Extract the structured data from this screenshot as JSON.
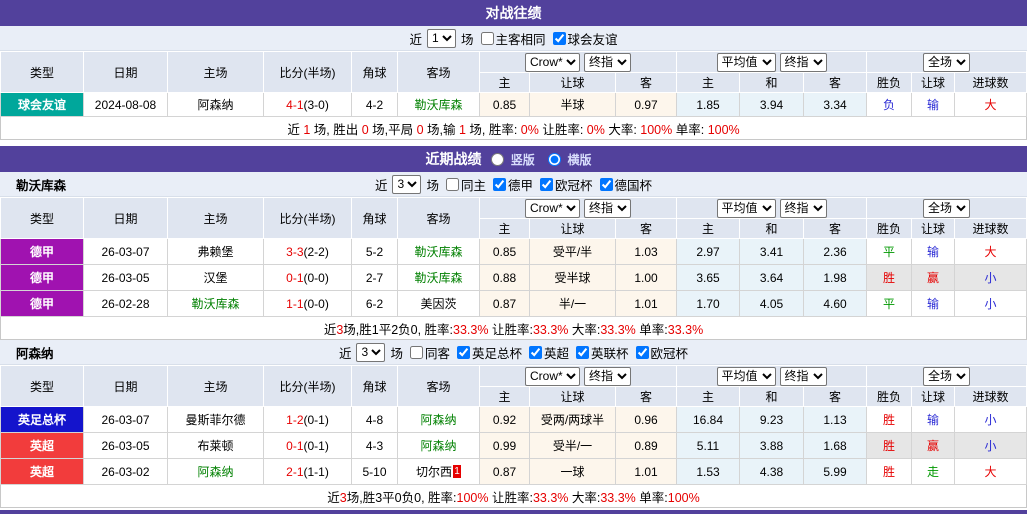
{
  "palette": {
    "header_purple": "#52419c",
    "filter_bg": "#e9eef7",
    "table_header_bg": "#dfe5f0",
    "league_friendly_teal": "#00a79b",
    "league_bundesliga_purple": "#a012b0",
    "league_facup_blue": "#1414cc",
    "league_epl_red": "#f23c3c",
    "team_link_green": "#008000",
    "score_red": "#e60000",
    "result_blue": "#2b2bd5",
    "result_green": "#009900",
    "odds_col_cream": "#fdf6ec",
    "avg_col_blue": "#e9f3f9",
    "highlight_gray": "#e6e6e6"
  },
  "cols": {
    "type": "类型",
    "date": "日期",
    "home": "主场",
    "score": "比分(半场)",
    "corner": "角球",
    "away": "客场",
    "h": "主",
    "handicap": "让球",
    "a": "客",
    "avg_h": "主",
    "avg_d": "和",
    "avg_a": "客",
    "wdl": "胜负",
    "handicap_res": "让球",
    "goals": "进球数"
  },
  "dropdowns": {
    "bookmaker": "Crow*",
    "final_index": "终指",
    "average": "平均值",
    "final_index2": "终指",
    "full_match": "全场"
  },
  "h2h": {
    "title": "对战往绩",
    "filter": {
      "prefix": "近",
      "count": "1",
      "suffix": "场",
      "checks": [
        {
          "label": "主客相同",
          "checked": false
        },
        {
          "label": "球会友谊",
          "checked": true
        }
      ]
    },
    "rows": [
      {
        "type": "球会友谊",
        "date": "2024-08-08",
        "home": "阿森纳",
        "score": "4-1",
        "half": "(3-0)",
        "corner": "4-2",
        "away": "勒沃库森",
        "odds": [
          "0.85",
          "半球",
          "0.97"
        ],
        "avg": [
          "1.85",
          "3.94",
          "3.34"
        ],
        "results": [
          "负",
          "输",
          "大"
        ]
      }
    ],
    "summary": [
      {
        "t": "近 "
      },
      {
        "t": "1",
        "r": 1
      },
      {
        "t": " 场, 胜出 "
      },
      {
        "t": "0",
        "r": 1
      },
      {
        "t": " 场,平局 "
      },
      {
        "t": "0",
        "r": 1
      },
      {
        "t": " 场,输 "
      },
      {
        "t": "1",
        "r": 1
      },
      {
        "t": " 场, 胜率: "
      },
      {
        "t": "0%",
        "r": 1
      },
      {
        "t": " 让胜率: "
      },
      {
        "t": "0%",
        "r": 1
      },
      {
        "t": " 大率: "
      },
      {
        "t": "100%",
        "r": 1
      },
      {
        "t": " 单率: "
      },
      {
        "t": "100%",
        "r": 1
      }
    ]
  },
  "recent": {
    "title": "近期战绩",
    "radios": [
      {
        "label": "竖版",
        "selected": false
      },
      {
        "label": "横版",
        "selected": true
      }
    ],
    "lev": {
      "name": "勒沃库森",
      "filter": {
        "prefix": "近",
        "count": "3",
        "suffix": "场",
        "checks": [
          {
            "label": "同主",
            "checked": false
          },
          {
            "label": "德甲",
            "checked": true
          },
          {
            "label": "欧冠杯",
            "checked": true
          },
          {
            "label": "德国杯",
            "checked": true
          }
        ]
      },
      "rows": [
        {
          "type": "德甲",
          "date": "26-03-07",
          "home": "弗赖堡",
          "score": "3-3",
          "half": "(2-2)",
          "corner": "5-2",
          "away": "勒沃库森",
          "odds": [
            "0.85",
            "受平/半",
            "1.03"
          ],
          "avg": [
            "2.97",
            "3.41",
            "2.36"
          ],
          "results": [
            "平",
            "输",
            "大"
          ]
        },
        {
          "type": "德甲",
          "date": "26-03-05",
          "home": "汉堡",
          "score": "0-1",
          "half": "(0-0)",
          "corner": "2-7",
          "away": "勒沃库森",
          "odds": [
            "0.88",
            "受半球",
            "1.00"
          ],
          "avg": [
            "3.65",
            "3.64",
            "1.98"
          ],
          "results": [
            "胜",
            "赢",
            "小"
          ]
        },
        {
          "type": "德甲",
          "date": "26-02-28",
          "home": "勒沃库森",
          "score": "1-1",
          "half": "(0-0)",
          "corner": "6-2",
          "away": "美因茨",
          "odds": [
            "0.87",
            "半/一",
            "1.01"
          ],
          "avg": [
            "1.70",
            "4.05",
            "4.60"
          ],
          "results": [
            "平",
            "输",
            "小"
          ]
        }
      ],
      "summary": [
        {
          "t": "近"
        },
        {
          "t": "3",
          "r": 1
        },
        {
          "t": "场,胜1平2负0, 胜率:"
        },
        {
          "t": "33.3%",
          "r": 1
        },
        {
          "t": " 让胜率:"
        },
        {
          "t": "33.3%",
          "r": 1
        },
        {
          "t": " 大率:"
        },
        {
          "t": "33.3%",
          "r": 1
        },
        {
          "t": " 单率:"
        },
        {
          "t": "33.3%",
          "r": 1
        }
      ]
    },
    "ars": {
      "name": "阿森纳",
      "filter": {
        "prefix": "近",
        "count": "3",
        "suffix": "场",
        "checks": [
          {
            "label": "同客",
            "checked": false
          },
          {
            "label": "英足总杯",
            "checked": true
          },
          {
            "label": "英超",
            "checked": true
          },
          {
            "label": "英联杯",
            "checked": true
          },
          {
            "label": "欧冠杯",
            "checked": true
          }
        ]
      },
      "rows": [
        {
          "type": "英足总杯",
          "date": "26-03-07",
          "home": "曼斯菲尔德",
          "score": "1-2",
          "half": "(0-1)",
          "corner": "4-8",
          "away": "阿森纳",
          "odds": [
            "0.92",
            "受两/两球半",
            "0.96"
          ],
          "avg": [
            "16.84",
            "9.23",
            "1.13"
          ],
          "results": [
            "胜",
            "输",
            "小"
          ]
        },
        {
          "type": "英超",
          "date": "26-03-05",
          "home": "布莱顿",
          "score": "0-1",
          "half": "(0-1)",
          "corner": "4-3",
          "away": "阿森纳",
          "odds": [
            "0.99",
            "受半/一",
            "0.89"
          ],
          "avg": [
            "5.11",
            "3.88",
            "1.68"
          ],
          "results": [
            "胜",
            "赢",
            "小"
          ]
        },
        {
          "type": "英超",
          "date": "26-03-02",
          "home": "阿森纳",
          "score": "2-1",
          "half": "(1-1)",
          "corner": "5-10",
          "away": "切尔西",
          "away_badge": "1",
          "odds": [
            "0.87",
            "一球",
            "1.01"
          ],
          "avg": [
            "1.53",
            "4.38",
            "5.99"
          ],
          "results": [
            "胜",
            "走",
            "大"
          ]
        }
      ],
      "summary": [
        {
          "t": "近"
        },
        {
          "t": "3",
          "r": 1
        },
        {
          "t": "场,胜3平0负0, 胜率:"
        },
        {
          "t": "100%",
          "r": 1
        },
        {
          "t": " 让胜率:"
        },
        {
          "t": "33.3%",
          "r": 1
        },
        {
          "t": " 大率:"
        },
        {
          "t": "33.3%",
          "r": 1
        },
        {
          "t": " 单率:"
        },
        {
          "t": "100%",
          "r": 1
        }
      ]
    }
  }
}
